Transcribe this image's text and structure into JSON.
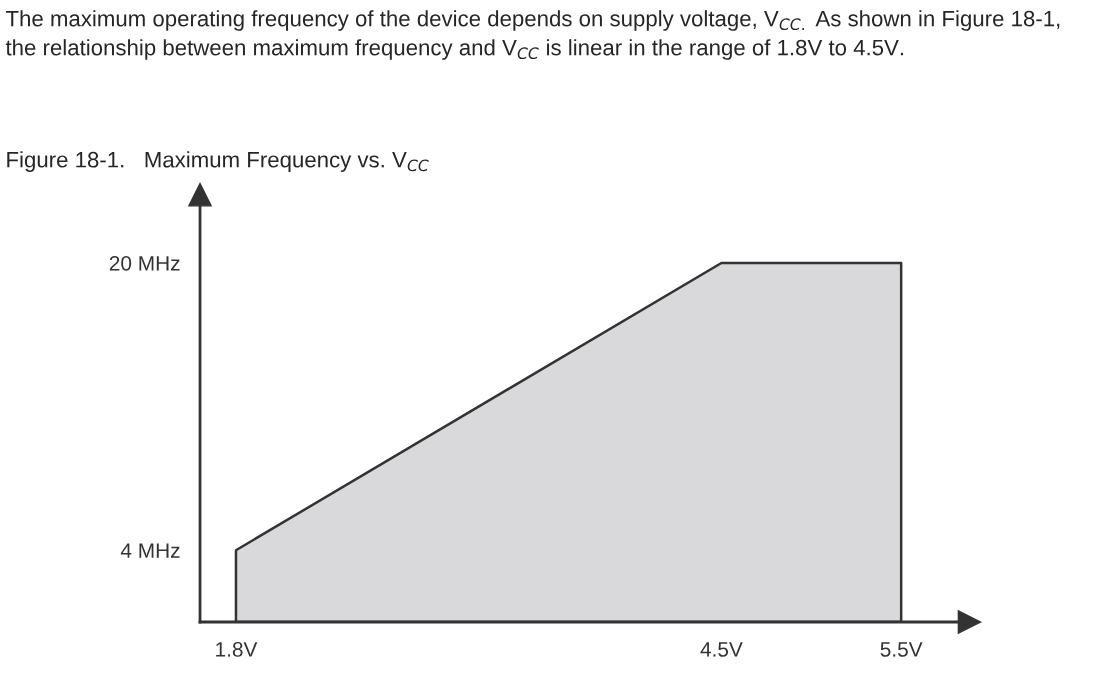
{
  "chart_data": {
    "type": "area",
    "title": "Figure 18-1.   Maximum Frequency vs. V$_{CC}$",
    "annotations": [
      "The maximum operating frequency of the device depends on supply voltage, V$_{CC.}$ As shown in Figure 18-1, the relationship between maximum frequency and V$_{CC}$ is linear in the range of 1.8V to 4.5V."
    ],
    "series": [
      {
        "x": [
          1.8,
          1.8,
          4.5,
          5.5,
          5.5
        ],
        "values": [
          0,
          4,
          20,
          20,
          0
        ],
        "color": "#d9d9db"
      }
    ],
    "xlim": [
      1.6,
      5.88
    ],
    "ylim": [
      0,
      23.8
    ],
    "xticks": [
      {
        "value": 1.8,
        "label": "1.8V"
      },
      {
        "value": 4.5,
        "label": "4.5V"
      },
      {
        "value": 5.5,
        "label": "5.5V"
      }
    ],
    "yticks": [
      {
        "value": 4,
        "label": "4 MHz"
      },
      {
        "value": 20,
        "label": "20 MHz"
      }
    ],
    "grid": false,
    "legend": false
  }
}
